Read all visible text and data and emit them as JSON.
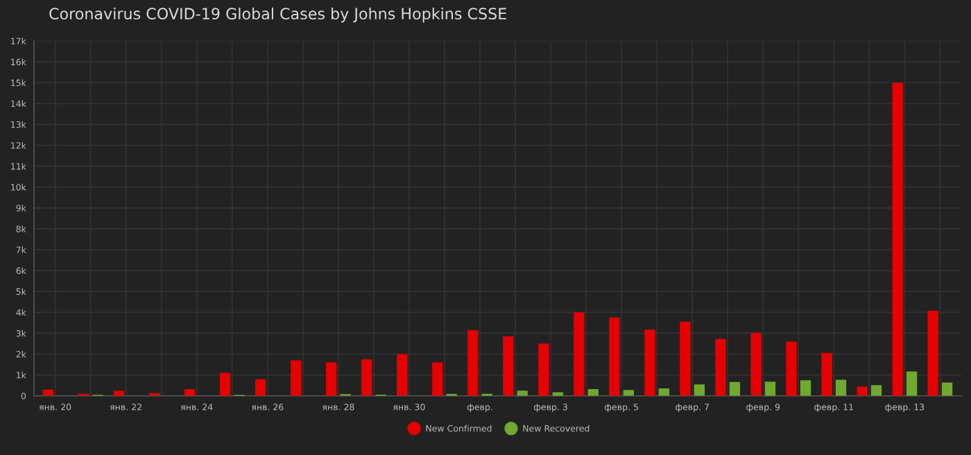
{
  "chart_data": {
    "type": "bar",
    "title": "Coronavirus COVID-19 Global Cases by Johns Hopkins CSSE",
    "categories": [
      "янв. 20",
      null,
      "янв. 22",
      null,
      "янв. 24",
      null,
      "янв. 26",
      null,
      "янв. 28",
      null,
      "янв. 30",
      null,
      "февр.",
      null,
      "февр. 3",
      null,
      "февр. 5",
      null,
      "февр. 7",
      null,
      "февр. 9",
      null,
      "февр. 11",
      null,
      "февр. 13",
      null
    ],
    "series": [
      {
        "name": "New Confirmed",
        "color": "#e60000",
        "values": [
          300,
          100,
          250,
          130,
          320,
          1100,
          800,
          1700,
          1600,
          1750,
          2000,
          1600,
          3150,
          2850,
          2500,
          4000,
          3750,
          3170,
          3550,
          2720,
          3020,
          2600,
          2060,
          450,
          15000,
          4080
        ]
      },
      {
        "name": "New Recovered",
        "color": "#70a830",
        "values": [
          null,
          50,
          null,
          null,
          null,
          50,
          null,
          null,
          80,
          60,
          null,
          90,
          100,
          250,
          170,
          320,
          280,
          360,
          550,
          660,
          680,
          750,
          770,
          510,
          1170,
          640
        ]
      }
    ],
    "ylim": [
      0,
      17000
    ],
    "yticks": [
      {
        "value": 0,
        "label": "0"
      },
      {
        "value": 1000,
        "label": "1k"
      },
      {
        "value": 2000,
        "label": "2k"
      },
      {
        "value": 3000,
        "label": "3k"
      },
      {
        "value": 4000,
        "label": "4k"
      },
      {
        "value": 5000,
        "label": "5k"
      },
      {
        "value": 6000,
        "label": "6k"
      },
      {
        "value": 7000,
        "label": "7k"
      },
      {
        "value": 8000,
        "label": "8k"
      },
      {
        "value": 9000,
        "label": "9k"
      },
      {
        "value": 10000,
        "label": "10k"
      },
      {
        "value": 11000,
        "label": "11k"
      },
      {
        "value": 12000,
        "label": "12k"
      },
      {
        "value": 13000,
        "label": "13k"
      },
      {
        "value": 14000,
        "label": "14k"
      },
      {
        "value": 15000,
        "label": "15k"
      },
      {
        "value": 16000,
        "label": "16k"
      },
      {
        "value": 17000,
        "label": "17k"
      }
    ],
    "grid": true,
    "legend": "bottom",
    "marker": "circle"
  }
}
